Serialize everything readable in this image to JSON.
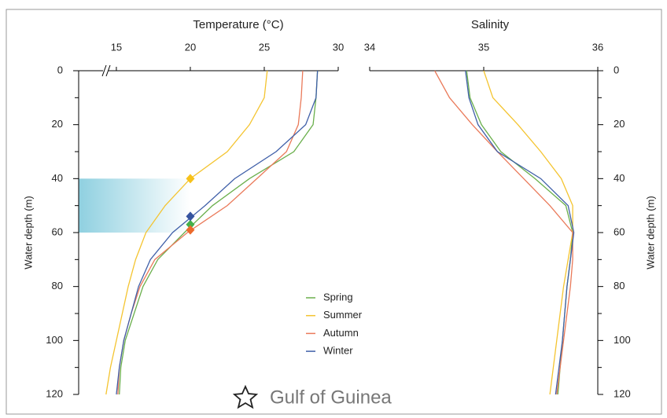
{
  "chart_data": [
    {
      "type": "line",
      "title": "Temperature (°C)",
      "y_label": "Water depth (m)",
      "xlim": [
        12.45,
        30
      ],
      "xticks": [
        15,
        20,
        25,
        30
      ],
      "axis_break": true,
      "ylim": [
        0,
        120
      ],
      "yticks": [
        0,
        20,
        40,
        60,
        80,
        100,
        120
      ],
      "yticks_minor": [
        10,
        30,
        50,
        70,
        90,
        110
      ],
      "y": [
        0,
        10,
        20,
        30,
        40,
        50,
        60,
        70,
        80,
        90,
        100,
        110,
        120
      ],
      "legend": "center",
      "highlight": [
        40,
        60
      ],
      "marker_temperature": 20,
      "series": [
        {
          "name": "Spring",
          "color": "#6aaf4c",
          "marker_color": "#45b04a",
          "marker_depth": 57,
          "values": [
            28.6,
            28.5,
            28.3,
            27.0,
            24.0,
            21.5,
            19.6,
            17.8,
            16.8,
            16.2,
            15.6,
            15.3,
            15.2
          ]
        },
        {
          "name": "Summer",
          "color": "#f4c430",
          "marker_color": "#f7c21a",
          "marker_depth": 40,
          "values": [
            25.2,
            25.0,
            24.0,
            22.5,
            20.0,
            18.3,
            17.0,
            16.3,
            15.8,
            15.4,
            15.0,
            14.6,
            14.3
          ]
        },
        {
          "name": "Autumn",
          "color": "#ea7a5a",
          "marker_color": "#ec6a2c",
          "marker_depth": 59,
          "values": [
            27.6,
            27.5,
            27.3,
            26.5,
            24.5,
            22.5,
            19.8,
            17.6,
            16.6,
            16.0,
            15.5,
            15.2,
            15.1
          ]
        },
        {
          "name": "Winter",
          "color": "#3f5fa8",
          "marker_color": "#3654a0",
          "marker_depth": 54,
          "values": [
            28.6,
            28.5,
            27.8,
            25.8,
            23.0,
            21.0,
            18.8,
            17.3,
            16.5,
            16.0,
            15.5,
            15.2,
            15.0
          ]
        }
      ]
    },
    {
      "type": "line",
      "title": "Salinity",
      "y_label": "Water depth (m)",
      "xlim": [
        34,
        36
      ],
      "xticks": [
        34,
        35,
        36
      ],
      "ylim": [
        0,
        120
      ],
      "yticks": [
        0,
        20,
        40,
        60,
        80,
        100,
        120
      ],
      "yticks_minor": [
        10,
        30,
        50,
        70,
        90,
        110
      ],
      "y": [
        0,
        10,
        20,
        30,
        40,
        50,
        60,
        70,
        80,
        90,
        100,
        110,
        120
      ],
      "series": [
        {
          "name": "Spring",
          "color": "#6aaf4c",
          "values": [
            34.85,
            34.88,
            34.98,
            35.15,
            35.45,
            35.72,
            35.78,
            35.76,
            35.73,
            35.71,
            35.69,
            35.67,
            35.65
          ]
        },
        {
          "name": "Summer",
          "color": "#f4c430",
          "values": [
            35.0,
            35.08,
            35.3,
            35.5,
            35.68,
            35.78,
            35.78,
            35.74,
            35.7,
            35.67,
            35.64,
            35.61,
            35.58
          ]
        },
        {
          "name": "Autumn",
          "color": "#ea7a5a",
          "values": [
            34.57,
            34.7,
            34.9,
            35.12,
            35.35,
            35.58,
            35.78,
            35.78,
            35.76,
            35.73,
            35.7,
            35.67,
            35.64
          ]
        },
        {
          "name": "Winter",
          "color": "#3f5fa8",
          "values": [
            34.84,
            34.87,
            34.95,
            35.12,
            35.5,
            35.74,
            35.79,
            35.76,
            35.73,
            35.71,
            35.69,
            35.66,
            35.63
          ]
        }
      ]
    }
  ],
  "location": "Gulf of Guinea"
}
